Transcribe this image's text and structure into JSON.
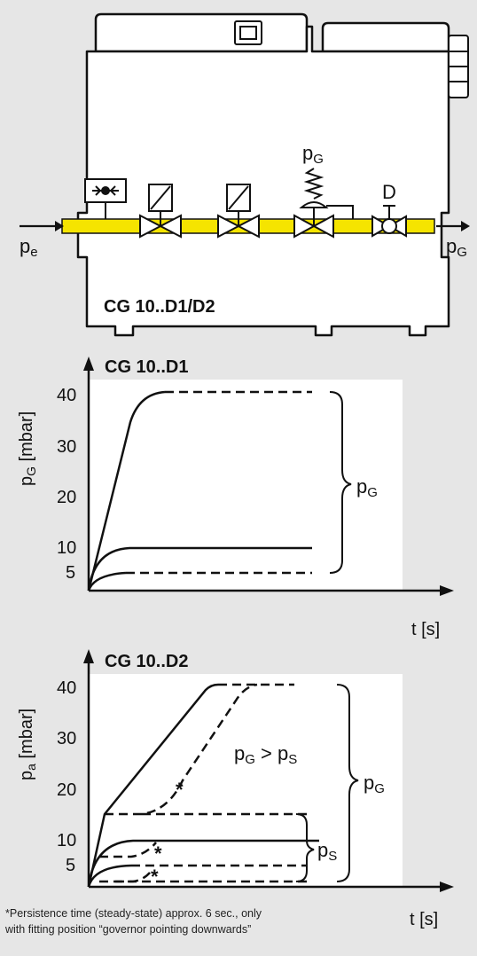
{
  "device": {
    "title": "CG 10..D1/D2",
    "inlet_label": "p",
    "inlet_sub": "e",
    "outlet_label": "p",
    "outlet_sub": "G",
    "governor_label": "p",
    "governor_sub": "G",
    "valve_d_label": "D",
    "pipe_color": "#f5e400"
  },
  "chart_data": [
    {
      "type": "line",
      "title": "CG 10..D1",
      "ylabel_main": "p",
      "ylabel_sub": "G",
      "ylabel_unit": " [mbar]",
      "xlabel": "t [s]",
      "yticks": [
        "40",
        "30",
        "20",
        "10",
        "5"
      ],
      "brace_label_main": "p",
      "brace_label_sub": "G",
      "series": [
        {
          "style": "solid",
          "points": [
            [
              0,
              0
            ],
            [
              0.05,
              33
            ],
            [
              0.12,
              40
            ]
          ]
        },
        {
          "style": "dashed",
          "points": [
            [
              0.12,
              40
            ],
            [
              1,
              40
            ]
          ]
        },
        {
          "style": "solid",
          "points": [
            [
              0,
              0
            ],
            [
              0.12,
              10
            ],
            [
              1,
              10
            ]
          ]
        },
        {
          "style": "solid",
          "points": [
            [
              0,
              0
            ],
            [
              0.12,
              5
            ]
          ]
        },
        {
          "style": "dashed",
          "points": [
            [
              0.12,
              5
            ],
            [
              1,
              5
            ]
          ]
        }
      ]
    },
    {
      "type": "line",
      "title": "CG 10..D2",
      "ylabel_main": "p",
      "ylabel_sub": "a",
      "ylabel_unit": " [mbar]",
      "xlabel": "t [s]",
      "yticks": [
        "40",
        "30",
        "20",
        "10",
        "5"
      ],
      "annotation_main": "p",
      "annotation_sub1": "G",
      "annotation_mid": " > p",
      "annotation_sub2": "S",
      "brace_pg_main": "p",
      "brace_pg_sub": "G",
      "brace_ps_main": "p",
      "brace_ps_sub": "S",
      "asterisk": "*",
      "footnote_line1": "*Persistence time (steady-state) approx. 6 sec., only",
      "footnote_line2": "with fitting position “governor pointing downwards”"
    }
  ]
}
